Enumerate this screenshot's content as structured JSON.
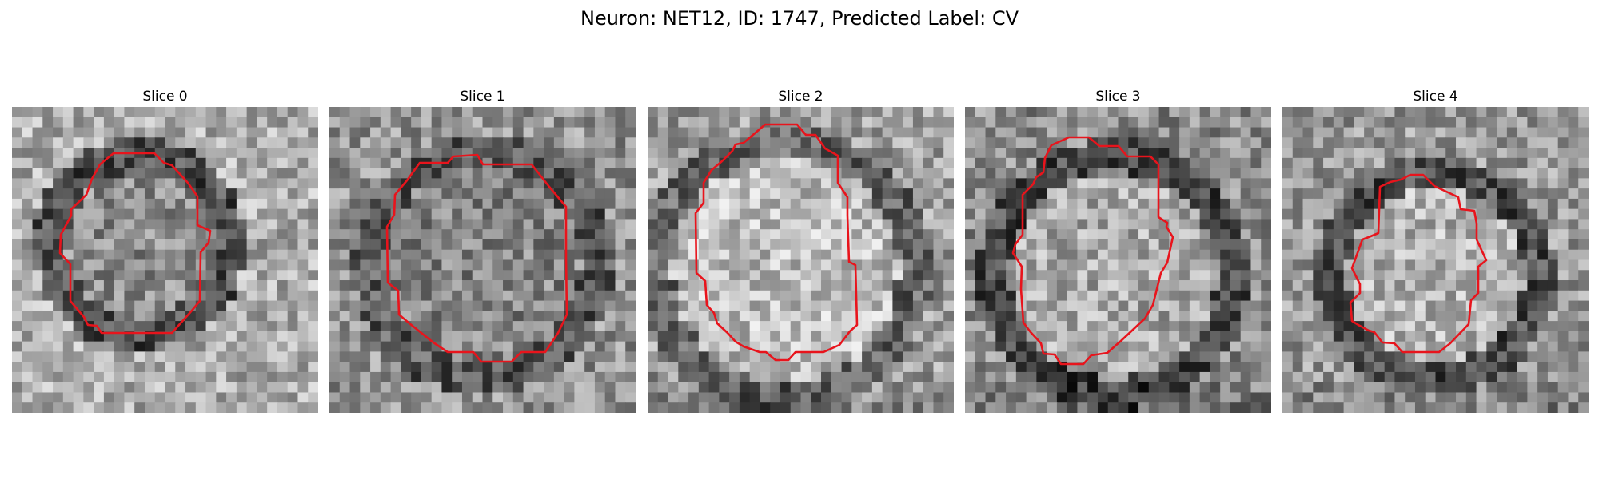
{
  "figure": {
    "title": "Neuron: NET12, ID: 1747, Predicted Label: CV"
  },
  "panels": [
    {
      "title": "Slice 0"
    },
    {
      "title": "Slice 1"
    },
    {
      "title": "Slice 2"
    },
    {
      "title": "Slice 3"
    },
    {
      "title": "Slice 4"
    }
  ],
  "colors": {
    "contour": "#e8141c",
    "background": "#ffffff"
  },
  "image": {
    "grid_size": 30,
    "colormap": "gray"
  }
}
